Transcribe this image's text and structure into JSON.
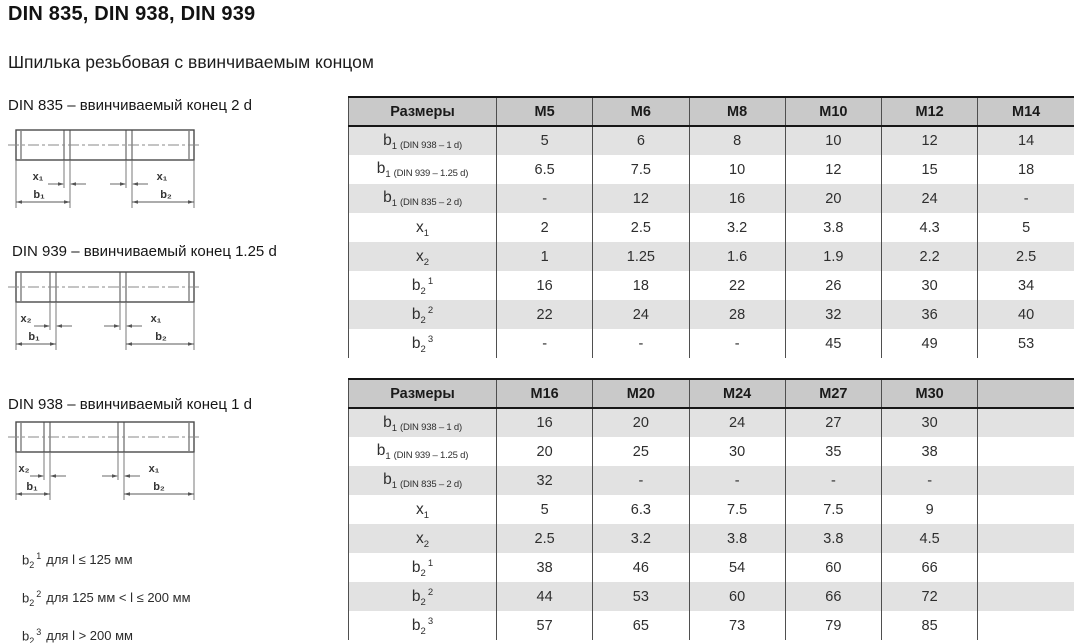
{
  "page": {
    "title": "DIN 835, DIN 938, DIN 939",
    "subtitle": "Шпилька резьбовая с ввинчиваемым концом"
  },
  "drawings": [
    {
      "caption": "DIN 835 – ввинчиваемый конец 2 d",
      "dim_left": "x₁",
      "dim_right": "x₁",
      "dim_b1": "b₁",
      "dim_b2": "b₂"
    },
    {
      "caption": "DIN 939 – ввинчиваемый конец 1.25 d",
      "dim_left": "x₂",
      "dim_right": "x₁",
      "dim_b1": "b₁",
      "dim_b2": "b₂"
    },
    {
      "caption": "DIN 938 – ввинчиваемый конец 1 d",
      "dim_left": "x₂",
      "dim_right": "x₁",
      "dim_b1": "b₁",
      "dim_b2": "b₂"
    }
  ],
  "tables": [
    {
      "header": [
        "Размеры",
        "M5",
        "M6",
        "M8",
        "M10",
        "M12",
        "M14"
      ],
      "rows": [
        {
          "base": "b",
          "sub": "1",
          "note": "(DIN 938 – 1 d)",
          "values": [
            "5",
            "6",
            "8",
            "10",
            "12",
            "14"
          ]
        },
        {
          "base": "b",
          "sub": "1",
          "note": "(DIN 939 – 1.25 d)",
          "values": [
            "6.5",
            "7.5",
            "10",
            "12",
            "15",
            "18"
          ]
        },
        {
          "base": "b",
          "sub": "1",
          "note": "(DIN 835 – 2 d)",
          "values": [
            "-",
            "12",
            "16",
            "20",
            "24",
            "-"
          ]
        },
        {
          "base": "x",
          "sub": "1",
          "values": [
            "2",
            "2.5",
            "3.2",
            "3.8",
            "4.3",
            "5"
          ]
        },
        {
          "base": "x",
          "sub": "2",
          "values": [
            "1",
            "1.25",
            "1.6",
            "1.9",
            "2.2",
            "2.5"
          ]
        },
        {
          "base": "b",
          "sub": "2",
          "sup": "1",
          "values": [
            "16",
            "18",
            "22",
            "26",
            "30",
            "34"
          ]
        },
        {
          "base": "b",
          "sub": "2",
          "sup": "2",
          "values": [
            "22",
            "24",
            "28",
            "32",
            "36",
            "40"
          ]
        },
        {
          "base": "b",
          "sub": "2",
          "sup": "3",
          "values": [
            "-",
            "-",
            "-",
            "45",
            "49",
            "53"
          ]
        }
      ]
    },
    {
      "header": [
        "Размеры",
        "M16",
        "M20",
        "M24",
        "M27",
        "M30",
        ""
      ],
      "rows": [
        {
          "base": "b",
          "sub": "1",
          "note": "(DIN 938 – 1 d)",
          "values": [
            "16",
            "20",
            "24",
            "27",
            "30",
            ""
          ]
        },
        {
          "base": "b",
          "sub": "1",
          "note": "(DIN 939 – 1.25 d)",
          "values": [
            "20",
            "25",
            "30",
            "35",
            "38",
            ""
          ]
        },
        {
          "base": "b",
          "sub": "1",
          "note": "(DIN 835 – 2 d)",
          "values": [
            "32",
            "-",
            "-",
            "-",
            "-",
            ""
          ]
        },
        {
          "base": "x",
          "sub": "1",
          "values": [
            "5",
            "6.3",
            "7.5",
            "7.5",
            "9",
            ""
          ]
        },
        {
          "base": "x",
          "sub": "2",
          "values": [
            "2.5",
            "3.2",
            "3.8",
            "3.8",
            "4.5",
            ""
          ]
        },
        {
          "base": "b",
          "sub": "2",
          "sup": "1",
          "values": [
            "38",
            "46",
            "54",
            "60",
            "66",
            ""
          ]
        },
        {
          "base": "b",
          "sub": "2",
          "sup": "2",
          "values": [
            "44",
            "53",
            "60",
            "66",
            "72",
            ""
          ]
        },
        {
          "base": "b",
          "sub": "2",
          "sup": "3",
          "values": [
            "57",
            "65",
            "73",
            "79",
            "85",
            ""
          ]
        }
      ]
    }
  ],
  "footnotes": [
    {
      "base": "b",
      "sub": "2",
      "sup": "1",
      "text": "для l ≤ 125 мм"
    },
    {
      "base": "b",
      "sub": "2",
      "sup": "2",
      "text": "для 125 мм < l ≤ 200 мм"
    },
    {
      "base": "b",
      "sub": "2",
      "sup": "3",
      "text": "для l > 200 мм"
    }
  ],
  "colors": {
    "header_bg": "#c9c9c9",
    "row_shaded": "#e2e2e2",
    "border_dark": "#161616",
    "grid_line": "#4f4f4f",
    "text_main": "#2e2e2e"
  }
}
